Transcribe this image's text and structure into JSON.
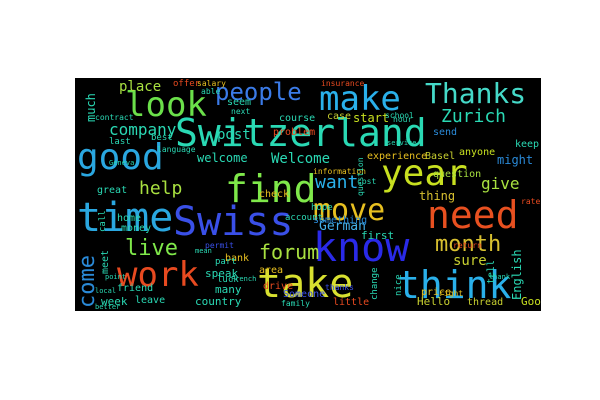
{
  "word_cloud": {
    "background": "#000000",
    "words": [
      {
        "text": "Switzerland",
        "color": "#2ad9b4"
      },
      {
        "text": "good",
        "color": "#2aa7e0"
      },
      {
        "text": "look",
        "color": "#6be04a"
      },
      {
        "text": "make",
        "color": "#2ab0ea"
      },
      {
        "text": "Thanks",
        "color": "#45d9c8"
      },
      {
        "text": "people",
        "color": "#3b7be8"
      },
      {
        "text": "find",
        "color": "#7fe84a"
      },
      {
        "text": "year",
        "color": "#c8e020"
      },
      {
        "text": "time",
        "color": "#2aa7e0"
      },
      {
        "text": "Swiss",
        "color": "#3a50e8"
      },
      {
        "text": "move",
        "color": "#e8c020"
      },
      {
        "text": "need",
        "color": "#e85020"
      },
      {
        "text": "know",
        "color": "#2a2ae8"
      },
      {
        "text": "think",
        "color": "#2ab0ea"
      },
      {
        "text": "take",
        "color": "#d8e030"
      },
      {
        "text": "work",
        "color": "#e84a20"
      },
      {
        "text": "forum",
        "color": "#a8e040"
      },
      {
        "text": "month",
        "color": "#d8c030"
      },
      {
        "text": "live",
        "color": "#7fe84a"
      },
      {
        "text": "come",
        "color": "#2a8ad8"
      },
      {
        "text": "help",
        "color": "#a8e040"
      },
      {
        "text": "company",
        "color": "#2ad9b4"
      },
      {
        "text": "Zurich",
        "color": "#2ad9b4"
      },
      {
        "text": "want",
        "color": "#2ab0ea"
      },
      {
        "text": "give",
        "color": "#a8e040"
      },
      {
        "text": "place",
        "color": "#a8e040"
      },
      {
        "text": "post",
        "color": "#2ad9b4"
      },
      {
        "text": "Welcome",
        "color": "#2ad9b4"
      },
      {
        "text": "welcome",
        "color": "#2ad9b4"
      },
      {
        "text": "German",
        "color": "#45b0e8"
      },
      {
        "text": "sure",
        "color": "#c8d030"
      },
      {
        "text": "thing",
        "color": "#d8c030"
      },
      {
        "text": "start",
        "color": "#c8e020"
      },
      {
        "text": "case",
        "color": "#c8d030"
      },
      {
        "text": "English",
        "color": "#2ad9b4"
      },
      {
        "text": "much",
        "color": "#2ad9b4"
      },
      {
        "text": "week",
        "color": "#2ad9b4"
      },
      {
        "text": "great",
        "color": "#2ad9b4"
      },
      {
        "text": "country",
        "color": "#2ad9b4"
      },
      {
        "text": "Basel",
        "color": "#c8d030"
      },
      {
        "text": "might",
        "color": "#2a8ad8"
      },
      {
        "text": "anyone",
        "color": "#c8e020"
      },
      {
        "text": "keep",
        "color": "#2ad9b4"
      },
      {
        "text": "question",
        "color": "#a8e040"
      },
      {
        "text": "Hello",
        "color": "#c8d030"
      },
      {
        "text": "Good",
        "color": "#c8e020"
      },
      {
        "text": "thread",
        "color": "#c8d030"
      },
      {
        "text": "experience",
        "color": "#e8c020"
      },
      {
        "text": "first",
        "color": "#2ad9b4"
      },
      {
        "text": "tell",
        "color": "#2ad9b4"
      },
      {
        "text": "many",
        "color": "#2ad9b4"
      },
      {
        "text": "meet",
        "color": "#2ad9b4"
      },
      {
        "text": "speak",
        "color": "#2ad9b4"
      },
      {
        "text": "money",
        "color": "#2ad9b4"
      },
      {
        "text": "friend",
        "color": "#2ad9b4"
      },
      {
        "text": "best",
        "color": "#2ad9b4"
      },
      {
        "text": "seem",
        "color": "#2ad9b4"
      },
      {
        "text": "course",
        "color": "#2ad9b4"
      },
      {
        "text": "problem",
        "color": "#e84a20"
      },
      {
        "text": "account",
        "color": "#2ad9b4"
      },
      {
        "text": "check",
        "color": "#e8c020"
      },
      {
        "text": "bank",
        "color": "#e8c020"
      },
      {
        "text": "drive",
        "color": "#e84a20"
      },
      {
        "text": "area",
        "color": "#e8c020"
      },
      {
        "text": "part",
        "color": "#2ad9b4"
      },
      {
        "text": "luck",
        "color": "#2ad9b4"
      },
      {
        "text": "leave",
        "color": "#2ad9b4"
      },
      {
        "text": "little",
        "color": "#e84a20"
      },
      {
        "text": "something",
        "color": "#2a8ad8"
      },
      {
        "text": "hope",
        "color": "#2ad9b4"
      },
      {
        "text": "information",
        "color": "#e8c020"
      },
      {
        "text": "insurance",
        "color": "#e84a20"
      },
      {
        "text": "price",
        "color": "#e8c020"
      },
      {
        "text": "offer",
        "color": "#e84a20"
      },
      {
        "text": "home",
        "color": "#2ad9b4"
      },
      {
        "text": "send",
        "color": "#2a8ad8"
      },
      {
        "text": "last",
        "color": "#2ad9b4"
      },
      {
        "text": "call",
        "color": "#2ad9b4"
      },
      {
        "text": "school",
        "color": "#2ad9b4"
      },
      {
        "text": "thanks",
        "color": "#3a50e8"
      },
      {
        "text": "change",
        "color": "#2ad9b4"
      },
      {
        "text": "nice",
        "color": "#2ad9b4"
      },
      {
        "text": "right",
        "color": "#e8c020"
      },
      {
        "text": "family",
        "color": "#2ad9b4"
      },
      {
        "text": "Someone",
        "color": "#3a50e8"
      },
      {
        "text": "cost",
        "color": "#2ad9b4"
      },
      {
        "text": "hour",
        "color": "#2ad9b4"
      },
      {
        "text": "question",
        "color": "#2ad9b4"
      },
      {
        "text": "language",
        "color": "#2ad9b4"
      },
      {
        "text": "contract",
        "color": "#2ad9b4"
      },
      {
        "text": "salary",
        "color": "#e8c020"
      },
      {
        "text": "able",
        "color": "#2ad9b4"
      },
      {
        "text": "next",
        "color": "#2ad9b4"
      },
      {
        "text": "return",
        "color": "#e84a20"
      },
      {
        "text": "permit",
        "color": "#3a50e8"
      },
      {
        "text": "rate",
        "color": "#e84a20"
      },
      {
        "text": "Geneva",
        "color": "#2ad9b4"
      },
      {
        "text": "service",
        "color": "#2ad9b4"
      },
      {
        "text": "better",
        "color": "#2ad9b4"
      },
      {
        "text": "point",
        "color": "#2ad9b4"
      },
      {
        "text": "thank",
        "color": "#2ad9b4"
      },
      {
        "text": "French",
        "color": "#2ad9b4"
      },
      {
        "text": "mean",
        "color": "#2ad9b4"
      },
      {
        "text": "local",
        "color": "#2ad9b4"
      }
    ]
  }
}
